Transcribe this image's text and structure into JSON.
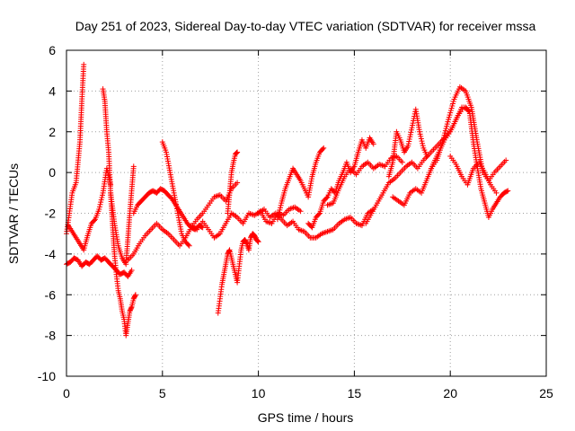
{
  "chart_data": {
    "type": "scatter",
    "title": "Day 251 of 2023, Sidereal Day-to-day VTEC variation (SDTVAR) for receiver mssa",
    "xlabel": "GPS time / hours",
    "ylabel": "SDTVAR / TECUs",
    "xlim": [
      0,
      25
    ],
    "ylim": [
      -10,
      6
    ],
    "xticks": [
      "0",
      "5",
      "10",
      "15",
      "20",
      "25"
    ],
    "yticks": [
      "-10",
      "-8",
      "-6",
      "-4",
      "-2",
      "0",
      "2",
      "4",
      "6"
    ],
    "grid": true,
    "marker": "+",
    "color": "#ff0000",
    "series": [
      {
        "name": "s1",
        "x": [
          0.0,
          0.3,
          0.5,
          0.7,
          0.8,
          0.9
        ],
        "y": [
          -3.0,
          -1.0,
          -0.5,
          1.5,
          3.5,
          5.3
        ]
      },
      {
        "name": "s2",
        "x": [
          0.0,
          0.2,
          0.4,
          0.6,
          0.8,
          1.0,
          1.2,
          1.4,
          1.6,
          1.8,
          2.0,
          2.2,
          2.4,
          2.6,
          2.8,
          3.0,
          3.2,
          3.4
        ],
        "y": [
          -4.5,
          -4.4,
          -4.2,
          -4.3,
          -4.6,
          -4.4,
          -4.5,
          -4.3,
          -4.1,
          -4.3,
          -4.2,
          -4.4,
          -4.6,
          -4.8,
          -5.0,
          -4.9,
          -5.1,
          -4.8
        ]
      },
      {
        "name": "s3",
        "x": [
          1.9,
          2.0,
          2.1,
          2.2,
          2.3,
          2.4,
          2.5,
          2.6,
          2.7,
          2.8,
          2.9,
          3.0,
          3.1,
          3.2,
          3.3,
          3.4,
          3.5,
          3.6
        ],
        "y": [
          4.1,
          3.5,
          2.0,
          1.0,
          -1.0,
          -2.5,
          -4.0,
          -5.0,
          -5.8,
          -6.2,
          -6.8,
          -7.2,
          -8.0,
          -7.4,
          -6.8,
          -6.6,
          -6.2,
          -6.0
        ]
      },
      {
        "name": "s4",
        "x": [
          0.1,
          0.3,
          0.5,
          0.7,
          0.9,
          1.1,
          1.3,
          1.5,
          1.7,
          1.9,
          2.1,
          2.3
        ],
        "y": [
          -2.6,
          -2.9,
          -3.2,
          -3.5,
          -3.8,
          -3.1,
          -2.5,
          -2.3,
          -1.8,
          -1.0,
          0.2,
          -0.6
        ]
      },
      {
        "name": "s5",
        "x": [
          2.3,
          2.5,
          2.7,
          2.9,
          3.1,
          3.3,
          3.5
        ],
        "y": [
          -1.0,
          -2.5,
          -3.6,
          -4.2,
          -4.5,
          -2.0,
          0.3
        ]
      },
      {
        "name": "s6",
        "x": [
          3.5,
          3.7,
          3.9,
          4.1,
          4.3,
          4.5,
          4.7,
          4.9,
          5.1,
          5.3,
          5.5,
          5.7,
          5.9,
          6.1,
          6.3,
          6.5,
          6.7,
          6.9,
          7.1
        ],
        "y": [
          -2.0,
          -1.6,
          -1.4,
          -1.2,
          -1.0,
          -0.9,
          -1.0,
          -0.8,
          -0.9,
          -1.1,
          -1.3,
          -1.6,
          -1.9,
          -2.2,
          -2.5,
          -2.7,
          -2.8,
          -2.6,
          -2.7
        ]
      },
      {
        "name": "s7",
        "x": [
          3.2,
          3.5,
          3.8,
          4.1,
          4.4,
          4.7,
          5.0,
          5.3,
          5.6,
          5.9,
          6.2,
          6.5,
          6.8,
          7.1,
          7.4,
          7.7,
          8.0,
          8.3,
          8.6,
          8.9
        ],
        "y": [
          -4.3,
          -4.0,
          -3.5,
          -3.1,
          -2.8,
          -2.5,
          -2.8,
          -3.0,
          -3.3,
          -3.6,
          -3.2,
          -2.7,
          -2.3,
          -2.0,
          -1.6,
          -1.2,
          -1.1,
          -1.4,
          -0.8,
          -0.5
        ]
      },
      {
        "name": "s8",
        "x": [
          5.0,
          5.2,
          5.4,
          5.6,
          5.8,
          6.0,
          6.2,
          6.4
        ],
        "y": [
          1.5,
          1.0,
          0.0,
          -1.0,
          -2.0,
          -3.0,
          -3.4,
          -3.6
        ]
      },
      {
        "name": "s9",
        "x": [
          6.5,
          6.8,
          7.1,
          7.4,
          7.7,
          8.0,
          8.3,
          8.6,
          8.9,
          9.2,
          9.5,
          9.8,
          10.1,
          10.4,
          10.7,
          11.0,
          11.3,
          11.6,
          11.9,
          12.2
        ],
        "y": [
          -2.6,
          -2.8,
          -2.4,
          -2.8,
          -3.2,
          -3.0,
          -2.5,
          -2.0,
          -2.2,
          -2.5,
          -2.0,
          -2.1,
          -1.9,
          -2.4,
          -2.5,
          -2.0,
          -2.1,
          -1.8,
          -1.7,
          -1.9
        ]
      },
      {
        "name": "s10",
        "x": [
          7.9,
          8.0,
          8.1,
          8.2,
          8.3,
          8.4,
          8.5,
          8.6,
          8.7,
          8.8,
          8.9,
          9.0,
          9.1,
          9.2,
          9.3,
          9.4,
          9.5,
          9.6,
          9.7,
          9.8,
          9.9,
          10.0
        ],
        "y": [
          -6.9,
          -6.2,
          -5.5,
          -5.0,
          -4.5,
          -4.0,
          -3.8,
          -4.2,
          -4.6,
          -5.0,
          -5.4,
          -4.6,
          -3.8,
          -3.4,
          -3.3,
          -3.5,
          -3.8,
          -3.2,
          -3.0,
          -3.1,
          -3.3,
          -3.4
        ]
      },
      {
        "name": "s11",
        "x": [
          8.4,
          8.5,
          8.6,
          8.7,
          8.8,
          8.9
        ],
        "y": [
          -2.0,
          -1.0,
          0.0,
          0.5,
          0.9,
          1.0
        ]
      },
      {
        "name": "s12",
        "x": [
          10.0,
          10.3,
          10.6,
          10.9,
          11.2,
          11.5,
          11.8,
          12.1,
          12.4,
          12.7,
          13.0,
          13.3,
          13.6,
          13.9,
          14.2,
          14.5,
          14.8,
          15.1,
          15.4,
          15.7,
          16.0
        ],
        "y": [
          -2.0,
          -1.8,
          -2.2,
          -2.0,
          -2.3,
          -2.6,
          -2.4,
          -2.8,
          -2.9,
          -3.2,
          -3.2,
          -3.0,
          -2.9,
          -2.8,
          -2.5,
          -2.3,
          -2.2,
          -2.5,
          -2.6,
          -2.0,
          -1.8
        ]
      },
      {
        "name": "s13",
        "x": [
          11.0,
          11.2,
          11.4,
          11.6,
          11.8,
          12.0,
          12.2,
          12.4,
          12.6,
          12.8,
          13.0,
          13.2,
          13.4
        ],
        "y": [
          -2.3,
          -1.5,
          -0.8,
          -0.3,
          0.2,
          -0.1,
          -0.4,
          -0.8,
          -1.2,
          -0.2,
          0.5,
          1.0,
          1.2
        ]
      },
      {
        "name": "s14",
        "x": [
          12.6,
          12.8,
          13.0,
          13.2,
          13.4,
          13.6,
          13.8,
          14.0,
          14.2,
          14.4,
          14.6,
          14.8,
          15.0,
          15.2,
          15.4,
          15.6,
          15.8,
          16.0
        ],
        "y": [
          -2.5,
          -2.7,
          -2.2,
          -2.0,
          -1.4,
          -1.2,
          -0.8,
          -1.0,
          -0.4,
          0.0,
          0.5,
          0.0,
          0.3,
          1.0,
          1.6,
          1.2,
          1.7,
          1.4
        ]
      },
      {
        "name": "s15",
        "x": [
          13.6,
          13.9,
          14.2,
          14.5,
          14.8,
          15.1,
          15.4,
          15.7,
          16.0,
          16.3,
          16.6,
          16.9,
          17.2,
          17.5
        ],
        "y": [
          -1.6,
          -1.5,
          -0.8,
          -0.2,
          0.2,
          -0.1,
          0.3,
          0.5,
          0.2,
          0.4,
          0.3,
          0.7,
          0.8,
          0.5
        ]
      },
      {
        "name": "s16",
        "x": [
          15.6,
          15.9,
          16.2,
          16.5,
          16.8,
          17.1,
          17.4,
          17.7,
          18.0,
          18.3,
          18.6,
          18.9,
          19.2,
          19.5,
          19.8,
          20.1,
          20.4,
          20.7,
          21.0
        ],
        "y": [
          -2.5,
          -2.0,
          -1.5,
          -1.0,
          -0.5,
          -0.3,
          0.0,
          0.3,
          0.5,
          0.2,
          0.6,
          0.9,
          1.2,
          1.5,
          1.8,
          2.2,
          2.8,
          3.2,
          3.0
        ]
      },
      {
        "name": "s17",
        "x": [
          16.8,
          17.0,
          17.2,
          17.4,
          17.6,
          17.8,
          18.0,
          18.2,
          18.4,
          18.6,
          18.8
        ],
        "y": [
          -0.2,
          0.5,
          2.0,
          1.6,
          1.0,
          1.3,
          2.2,
          3.1,
          2.0,
          1.2,
          0.8
        ]
      },
      {
        "name": "s18",
        "x": [
          17.0,
          17.3,
          17.6,
          17.9,
          18.2,
          18.5,
          18.8,
          19.1,
          19.4,
          19.7,
          20.0,
          20.3,
          20.6
        ],
        "y": [
          -1.2,
          -1.4,
          -1.6,
          -1.0,
          -0.8,
          -1.0,
          -0.3,
          0.4,
          1.0,
          1.6,
          2.0,
          2.6,
          3.2
        ]
      },
      {
        "name": "s19",
        "x": [
          19.0,
          19.3,
          19.6,
          19.9,
          20.2,
          20.5,
          20.8,
          21.1,
          21.4,
          21.7,
          22.0,
          22.3,
          22.6,
          22.9
        ],
        "y": [
          0.2,
          0.6,
          1.5,
          2.6,
          3.6,
          4.2,
          4.0,
          3.2,
          1.5,
          0.0,
          -0.4,
          0.0,
          0.3,
          0.6
        ]
      },
      {
        "name": "s20",
        "x": [
          20.8,
          21.0,
          21.2,
          21.4,
          21.6,
          21.8,
          22.0,
          22.2,
          22.4,
          22.6,
          22.8,
          23.0
        ],
        "y": [
          3.2,
          3.0,
          1.5,
          0.3,
          -0.8,
          -1.5,
          -2.2,
          -1.8,
          -1.5,
          -1.2,
          -1.0,
          -0.9
        ]
      },
      {
        "name": "s21",
        "x": [
          20.0,
          20.3,
          20.6,
          20.9,
          21.2,
          21.5,
          21.8,
          22.1,
          22.4
        ],
        "y": [
          0.8,
          0.4,
          -0.2,
          -0.6,
          0.2,
          0.5,
          0.0,
          -0.6,
          -1.0
        ]
      }
    ]
  }
}
